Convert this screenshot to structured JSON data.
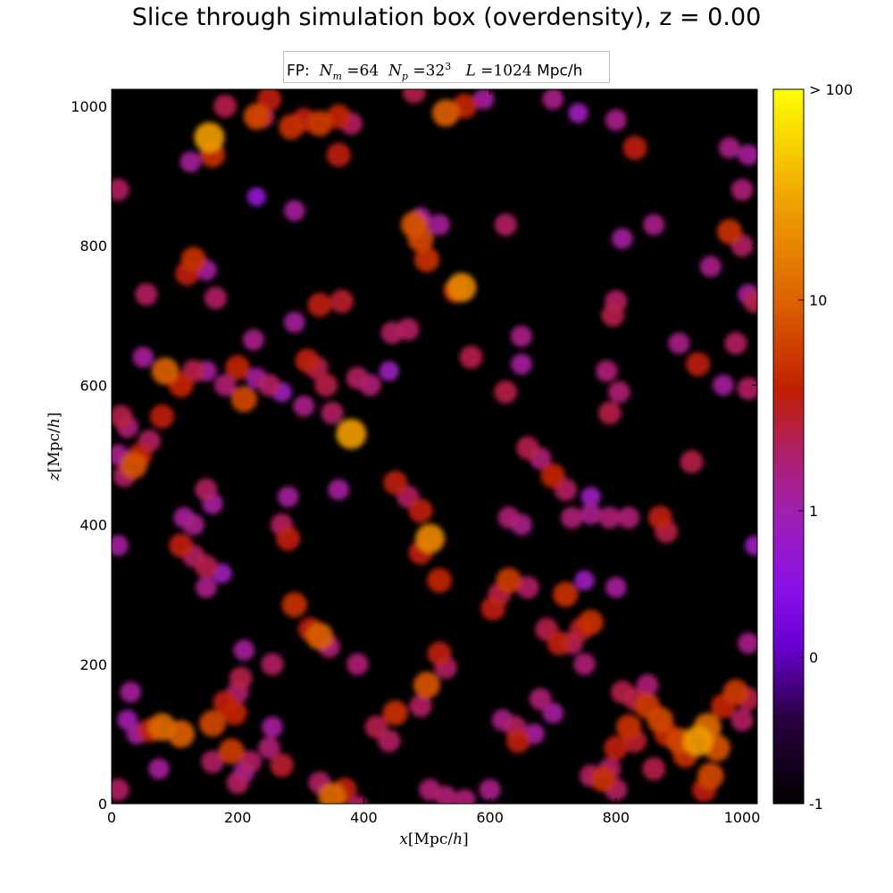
{
  "chart_data": {
    "type": "heatmap",
    "title": "Slice through simulation box (overdensity), z = 0.00",
    "legend": {
      "prefix": "FP:",
      "Nm_symbol": "N",
      "Nm_sub": "m",
      "Nm_value": "=64",
      "Np_symbol": "N",
      "Np_sub": "p",
      "Np_value": "=32",
      "Np_sup": "3",
      "L_symbol": "L",
      "L_value": "=1024",
      "L_unit": "Mpc/h"
    },
    "xlabel": {
      "var": "x",
      "unit": "[Mpc/",
      "h": "h",
      "close": "]"
    },
    "ylabel": {
      "var": "z",
      "unit": "[Mpc/",
      "h": "h",
      "close": "]"
    },
    "xlim": [
      0,
      1024
    ],
    "ylim": [
      0,
      1024
    ],
    "x_ticks": [
      "0",
      "200",
      "400",
      "600",
      "800",
      "1000"
    ],
    "y_ticks": [
      "0",
      "200",
      "400",
      "600",
      "800",
      "1000"
    ],
    "x_tick_values": [
      0,
      200,
      400,
      600,
      800,
      1000
    ],
    "y_tick_values": [
      0,
      200,
      400,
      600,
      800,
      1000
    ],
    "colorbar": {
      "scale": "log(1+delta)",
      "colormap": "gnuplot",
      "ticks": [
        {
          "label": "-1",
          "frac": 0.0
        },
        {
          "label": "0",
          "frac": 0.205
        },
        {
          "label": "1",
          "frac": 0.41
        },
        {
          "label": "10",
          "frac": 0.705
        },
        {
          "label": "> 100",
          "frac": 1.0
        }
      ]
    },
    "background_color": "#000000",
    "clumps": [
      [
        35,
        485,
        1.25
      ],
      [
        20,
        470,
        0.85
      ],
      [
        60,
        520,
        0.85
      ],
      [
        80,
        555,
        1.0
      ],
      [
        15,
        555,
        0.9
      ],
      [
        50,
        640,
        0.7
      ],
      [
        85,
        620,
        1.3
      ],
      [
        110,
        600,
        1.05
      ],
      [
        130,
        620,
        0.9
      ],
      [
        150,
        620,
        0.7
      ],
      [
        180,
        600,
        0.8
      ],
      [
        200,
        625,
        1.05
      ],
      [
        210,
        580,
        1.2
      ],
      [
        230,
        610,
        0.7
      ],
      [
        165,
        725,
        0.85
      ],
      [
        130,
        780,
        1.1
      ],
      [
        120,
        760,
        1.0
      ],
      [
        150,
        765,
        0.7
      ],
      [
        55,
        730,
        0.85
      ],
      [
        10,
        880,
        0.85
      ],
      [
        155,
        955,
        1.6
      ],
      [
        160,
        930,
        1.1
      ],
      [
        125,
        920,
        0.7
      ],
      [
        230,
        985,
        1.2
      ],
      [
        250,
        1010,
        1.0
      ],
      [
        285,
        970,
        1.1
      ],
      [
        305,
        980,
        1.0
      ],
      [
        330,
        975,
        1.15
      ],
      [
        360,
        985,
        1.05
      ],
      [
        380,
        975,
        0.85
      ],
      [
        360,
        930,
        1.0
      ],
      [
        290,
        850,
        0.7
      ],
      [
        180,
        1000,
        0.9
      ],
      [
        240,
        985,
        0.9
      ],
      [
        330,
        715,
        1.0
      ],
      [
        365,
        720,
        0.95
      ],
      [
        290,
        690,
        0.7
      ],
      [
        225,
        665,
        0.75
      ],
      [
        310,
        635,
        1.0
      ],
      [
        325,
        625,
        0.9
      ],
      [
        340,
        600,
        0.9
      ],
      [
        305,
        570,
        0.75
      ],
      [
        350,
        560,
        0.85
      ],
      [
        380,
        530,
        1.6
      ],
      [
        390,
        610,
        0.85
      ],
      [
        410,
        600,
        0.8
      ],
      [
        250,
        600,
        0.85
      ],
      [
        270,
        590,
        0.6
      ],
      [
        445,
        675,
        0.85
      ],
      [
        470,
        680,
        0.85
      ],
      [
        480,
        830,
        1.25
      ],
      [
        490,
        810,
        1.2
      ],
      [
        500,
        780,
        1.1
      ],
      [
        490,
        840,
        0.7
      ],
      [
        520,
        830,
        0.7
      ],
      [
        555,
        740,
        1.5
      ],
      [
        545,
        735,
        1.0
      ],
      [
        530,
        990,
        1.3
      ],
      [
        560,
        1000,
        1.05
      ],
      [
        480,
        1020,
        0.9
      ],
      [
        590,
        1010,
        0.7
      ],
      [
        625,
        830,
        0.85
      ],
      [
        700,
        1010,
        0.75
      ],
      [
        740,
        990,
        0.6
      ],
      [
        800,
        980,
        0.75
      ],
      [
        830,
        940,
        1.0
      ],
      [
        860,
        830,
        0.75
      ],
      [
        810,
        810,
        0.7
      ],
      [
        980,
        940,
        0.75
      ],
      [
        1010,
        930,
        0.7
      ],
      [
        1000,
        880,
        0.8
      ],
      [
        980,
        820,
        1.1
      ],
      [
        1000,
        800,
        0.85
      ],
      [
        1010,
        730,
        0.7
      ],
      [
        950,
        770,
        0.75
      ],
      [
        990,
        660,
        0.85
      ],
      [
        1020,
        720,
        0.9
      ],
      [
        900,
        660,
        0.75
      ],
      [
        930,
        630,
        1.0
      ],
      [
        970,
        600,
        0.7
      ],
      [
        1010,
        595,
        0.85
      ],
      [
        800,
        720,
        0.85
      ],
      [
        795,
        700,
        0.9
      ],
      [
        785,
        620,
        0.8
      ],
      [
        805,
        590,
        0.8
      ],
      [
        790,
        560,
        0.9
      ],
      [
        650,
        670,
        0.75
      ],
      [
        650,
        630,
        0.7
      ],
      [
        570,
        640,
        0.9
      ],
      [
        625,
        590,
        0.9
      ],
      [
        660,
        510,
        0.9
      ],
      [
        680,
        495,
        0.8
      ],
      [
        700,
        470,
        1.05
      ],
      [
        720,
        450,
        0.85
      ],
      [
        730,
        410,
        0.8
      ],
      [
        760,
        415,
        0.75
      ],
      [
        790,
        410,
        0.8
      ],
      [
        820,
        410,
        0.8
      ],
      [
        870,
        410,
        1.0
      ],
      [
        880,
        390,
        0.9
      ],
      [
        920,
        490,
        0.9
      ],
      [
        630,
        410,
        0.8
      ],
      [
        650,
        400,
        0.75
      ],
      [
        750,
        320,
        0.6
      ],
      [
        800,
        310,
        0.7
      ],
      [
        450,
        460,
        1.0
      ],
      [
        470,
        440,
        0.85
      ],
      [
        490,
        420,
        1.0
      ],
      [
        505,
        380,
        1.5
      ],
      [
        490,
        360,
        1.0
      ],
      [
        520,
        320,
        1.05
      ],
      [
        520,
        215,
        1.0
      ],
      [
        530,
        195,
        0.85
      ],
      [
        500,
        170,
        1.25
      ],
      [
        490,
        140,
        0.85
      ],
      [
        450,
        130,
        1.1
      ],
      [
        420,
        110,
        0.9
      ],
      [
        440,
        90,
        0.85
      ],
      [
        330,
        240,
        1.3
      ],
      [
        315,
        250,
        1.0
      ],
      [
        345,
        225,
        0.8
      ],
      [
        390,
        200,
        0.8
      ],
      [
        280,
        380,
        1.0
      ],
      [
        270,
        400,
        0.85
      ],
      [
        280,
        440,
        0.7
      ],
      [
        360,
        450,
        0.7
      ],
      [
        150,
        450,
        0.85
      ],
      [
        160,
        430,
        0.7
      ],
      [
        130,
        400,
        0.75
      ],
      [
        115,
        410,
        0.7
      ],
      [
        110,
        370,
        1.0
      ],
      [
        130,
        355,
        0.85
      ],
      [
        150,
        340,
        0.9
      ],
      [
        150,
        310,
        0.75
      ],
      [
        175,
        330,
        0.6
      ],
      [
        290,
        285,
        1.1
      ],
      [
        255,
        200,
        0.85
      ],
      [
        210,
        220,
        0.7
      ],
      [
        205,
        180,
        0.9
      ],
      [
        200,
        160,
        0.8
      ],
      [
        195,
        130,
        1.05
      ],
      [
        180,
        145,
        1.0
      ],
      [
        160,
        115,
        1.2
      ],
      [
        110,
        100,
        1.3
      ],
      [
        80,
        110,
        1.35
      ],
      [
        60,
        105,
        1.0
      ],
      [
        40,
        100,
        0.7
      ],
      [
        25,
        120,
        0.65
      ],
      [
        10,
        20,
        0.85
      ],
      [
        30,
        160,
        0.7
      ],
      [
        75,
        50,
        0.7
      ],
      [
        160,
        60,
        0.85
      ],
      [
        190,
        75,
        1.15
      ],
      [
        220,
        60,
        0.85
      ],
      [
        250,
        80,
        0.8
      ],
      [
        270,
        55,
        0.95
      ],
      [
        210,
        45,
        0.7
      ],
      [
        200,
        30,
        0.85
      ],
      [
        255,
        110,
        0.7
      ],
      [
        350,
        10,
        1.35
      ],
      [
        370,
        20,
        1.0
      ],
      [
        330,
        30,
        0.85
      ],
      [
        390,
        -5,
        0.85
      ],
      [
        505,
        20,
        0.8
      ],
      [
        530,
        10,
        0.8
      ],
      [
        560,
        5,
        0.8
      ],
      [
        600,
        20,
        0.75
      ],
      [
        640,
        110,
        0.85
      ],
      [
        645,
        90,
        1.0
      ],
      [
        620,
        120,
        0.75
      ],
      [
        605,
        280,
        1.0
      ],
      [
        615,
        300,
        0.9
      ],
      [
        630,
        320,
        1.15
      ],
      [
        660,
        310,
        0.85
      ],
      [
        690,
        250,
        0.9
      ],
      [
        710,
        230,
        1.0
      ],
      [
        730,
        230,
        0.85
      ],
      [
        745,
        250,
        0.95
      ],
      [
        760,
        260,
        1.1
      ],
      [
        750,
        200,
        0.8
      ],
      [
        720,
        300,
        1.1
      ],
      [
        810,
        160,
        0.9
      ],
      [
        830,
        150,
        0.9
      ],
      [
        850,
        140,
        1.15
      ],
      [
        870,
        120,
        1.2
      ],
      [
        880,
        100,
        1.05
      ],
      [
        900,
        90,
        1.2
      ],
      [
        910,
        70,
        1.1
      ],
      [
        930,
        90,
        1.6
      ],
      [
        945,
        110,
        1.35
      ],
      [
        960,
        80,
        1.25
      ],
      [
        950,
        40,
        1.2
      ],
      [
        940,
        20,
        1.0
      ],
      [
        970,
        140,
        1.05
      ],
      [
        990,
        160,
        1.15
      ],
      [
        1010,
        150,
        0.9
      ],
      [
        1000,
        120,
        0.85
      ],
      [
        1010,
        230,
        0.75
      ],
      [
        850,
        170,
        0.8
      ],
      [
        800,
        80,
        1.0
      ],
      [
        790,
        50,
        0.85
      ],
      [
        780,
        35,
        1.1
      ],
      [
        800,
        20,
        0.85
      ],
      [
        760,
        40,
        0.85
      ],
      [
        820,
        110,
        1.1
      ],
      [
        830,
        90,
        0.95
      ],
      [
        860,
        50,
        0.9
      ],
      [
        680,
        150,
        0.8
      ],
      [
        700,
        130,
        0.7
      ],
      [
        670,
        100,
        0.7
      ],
      [
        10,
        370,
        0.7
      ],
      [
        1020,
        370,
        0.6
      ],
      [
        45,
        500,
        1.0
      ],
      [
        25,
        540,
        0.8
      ],
      [
        10,
        500,
        0.75
      ],
      [
        440,
        620,
        0.6
      ],
      [
        230,
        870,
        0.5
      ],
      [
        760,
        440,
        0.6
      ]
    ]
  }
}
